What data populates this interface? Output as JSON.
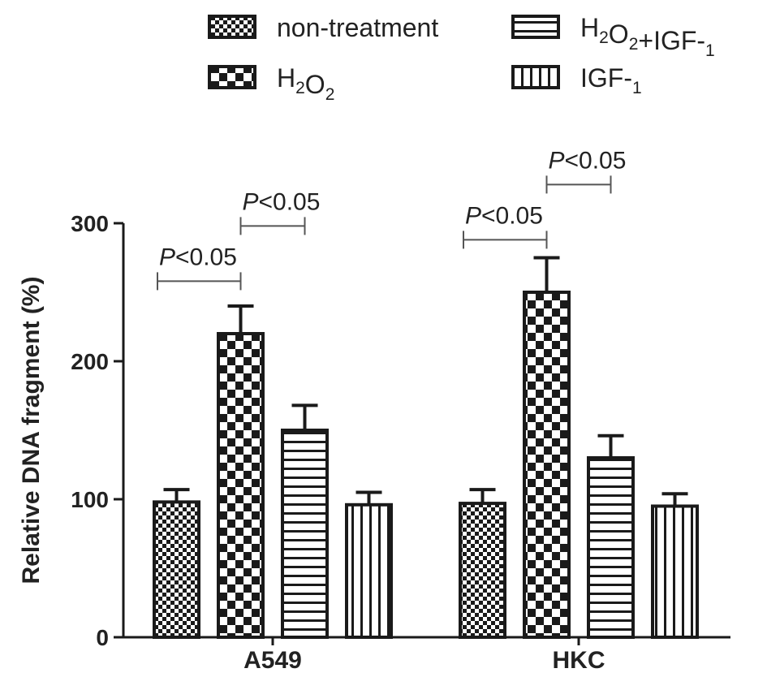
{
  "chart_data": {
    "type": "bar",
    "title": "",
    "xlabel": "",
    "ylabel": "Relative DNA fragment (%)",
    "ylim": [
      0,
      300
    ],
    "yticks": [
      "0",
      "100",
      "200",
      "300"
    ],
    "categories": [
      "A549",
      "HKC"
    ],
    "series": [
      {
        "name": "non-treatment",
        "pattern": "small-check",
        "values": [
          98,
          97
        ],
        "errors": [
          9,
          10
        ]
      },
      {
        "name": "H2O2",
        "pattern": "large-check",
        "values": [
          220,
          250
        ],
        "errors": [
          20,
          25
        ]
      },
      {
        "name": "H2O2+IGF-1",
        "pattern": "horizontal-lines",
        "values": [
          150,
          130
        ],
        "errors": [
          18,
          16
        ]
      },
      {
        "name": "IGF-1",
        "pattern": "vertical-lines",
        "values": [
          96,
          95
        ],
        "errors": [
          9,
          9
        ]
      }
    ],
    "legend": [
      {
        "label": "non-treatment",
        "series": 0
      },
      {
        "label": "H2O2",
        "series": 1
      },
      {
        "label": "H2O2+IGF-1",
        "series": 2
      },
      {
        "label": "IGF-1",
        "series": 3
      }
    ],
    "legend_position": "top",
    "grid": false,
    "annotations": [
      {
        "text_italic": "P",
        "text": "<0.05",
        "category": 0,
        "from_series": 0,
        "to_series": 1,
        "level": 258
      },
      {
        "text_italic": "P",
        "text": "<0.05",
        "category": 0,
        "from_series": 1,
        "to_series": 2,
        "level": 298
      },
      {
        "text_italic": "P",
        "text": "<0.05",
        "category": 1,
        "from_series": 0,
        "to_series": 1,
        "level": 288
      },
      {
        "text_italic": "P",
        "text": "<0.05",
        "category": 1,
        "from_series": 1,
        "to_series": 2,
        "level": 328
      }
    ],
    "colors": {
      "stroke": "#1a1a1a",
      "background": "#ffffff"
    }
  }
}
